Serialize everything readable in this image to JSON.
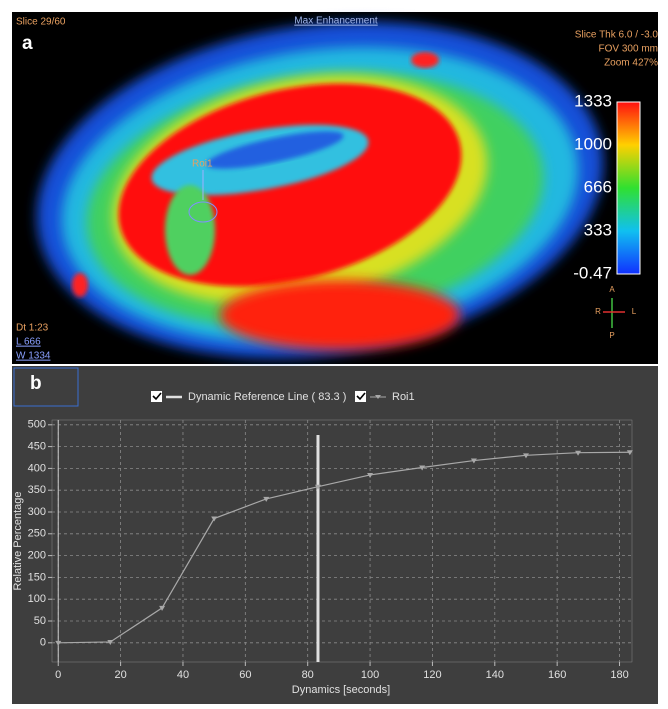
{
  "image_panel": {
    "panel_label": "a",
    "slice": "Slice 29/60",
    "mode": "Max Enhancement",
    "info": [
      "Slice Thk 6.0 / -3.0",
      "FOV 300 mm",
      "Zoom 427%"
    ],
    "colorbar_ticks": [
      1333,
      1000,
      666,
      333,
      -0.47
    ],
    "roi_label": "Roi1",
    "bottom_info": [
      "Dt 1:23",
      "L 666",
      "W 1334"
    ],
    "orientation": [
      "A",
      "R",
      "L",
      "P"
    ]
  },
  "chart_data": {
    "type": "line",
    "panel_label": "b",
    "x_label": "Dynamics [seconds]",
    "y_label": "Relative Percentage",
    "reference_line": {
      "name": "Dynamic Reference Line ( 83.3 )",
      "x": 83.3,
      "color": "#e0e0e0"
    },
    "x": [
      0,
      16.7,
      33.3,
      50,
      66.7,
      83.3,
      100,
      116.7,
      133.3,
      150,
      166.7,
      183.3
    ],
    "series": [
      {
        "name": "Roi1",
        "color": "#a8a8a8",
        "values": [
          0,
          2,
          80,
          285,
          330,
          358,
          385,
          402,
          418,
          430,
          436,
          437
        ]
      }
    ],
    "xlim": [
      -2,
      184
    ],
    "ylim": [
      -44,
      511
    ],
    "xticks": [
      0,
      20,
      40,
      60,
      80,
      100,
      120,
      140,
      160,
      180
    ],
    "yticks": [
      0,
      50,
      100,
      150,
      200,
      250,
      300,
      350,
      400,
      450,
      500
    ],
    "grid": true
  }
}
